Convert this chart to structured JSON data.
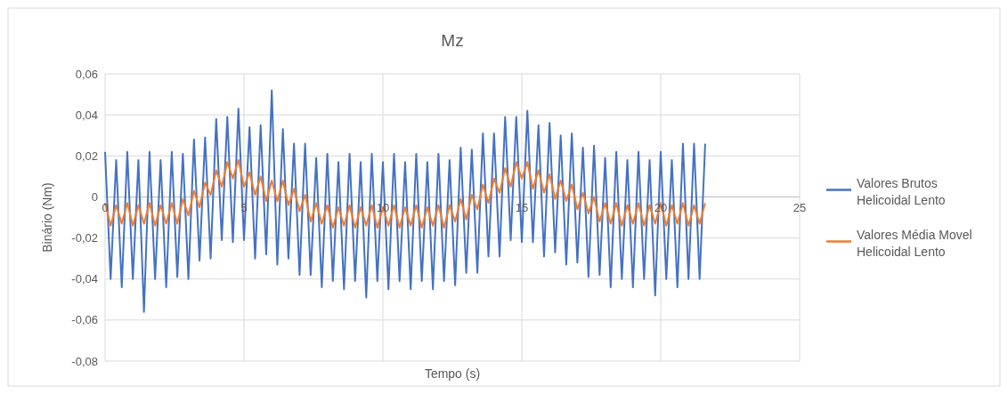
{
  "chart_data": {
    "type": "line",
    "title": "Mz",
    "xlabel": "Tempo (s)",
    "ylabel": "Binário (Nm)",
    "x": [
      0,
      0.2,
      0.4,
      0.6,
      0.8,
      1,
      1.2,
      1.4,
      1.6,
      1.8,
      2,
      2.2,
      2.4,
      2.6,
      2.8,
      3,
      3.2,
      3.4,
      3.6,
      3.8,
      4,
      4.2,
      4.4,
      4.6,
      4.8,
      5,
      5.2,
      5.4,
      5.6,
      5.8,
      6,
      6.2,
      6.4,
      6.6,
      6.8,
      7,
      7.2,
      7.4,
      7.6,
      7.8,
      8,
      8.2,
      8.4,
      8.6,
      8.8,
      9,
      9.2,
      9.4,
      9.6,
      9.8,
      10,
      10.2,
      10.4,
      10.6,
      10.8,
      11,
      11.2,
      11.4,
      11.6,
      11.8,
      12,
      12.2,
      12.4,
      12.6,
      12.8,
      13,
      13.2,
      13.4,
      13.6,
      13.8,
      14,
      14.2,
      14.4,
      14.6,
      14.8,
      15,
      15.2,
      15.4,
      15.6,
      15.8,
      16,
      16.2,
      16.4,
      16.6,
      16.8,
      17,
      17.2,
      17.4,
      17.6,
      17.8,
      18,
      18.2,
      18.4,
      18.6,
      18.8,
      19,
      19.2,
      19.4,
      19.6,
      19.8,
      20,
      20.2,
      20.4,
      20.6,
      20.8,
      21,
      21.2,
      21.4,
      21.6
    ],
    "series": [
      {
        "name": "Valores Brutos Helicoidal Lento",
        "color": "#4472c4",
        "values": [
          0.022,
          -0.04,
          0.018,
          -0.044,
          0.022,
          -0.04,
          0.018,
          -0.056,
          0.022,
          -0.04,
          0.018,
          -0.044,
          0.022,
          -0.039,
          0.021,
          -0.04,
          0.028,
          -0.031,
          0.029,
          -0.03,
          0.038,
          -0.021,
          0.039,
          -0.022,
          0.043,
          -0.021,
          0.034,
          -0.03,
          0.035,
          -0.028,
          0.052,
          -0.033,
          0.033,
          -0.03,
          0.026,
          -0.038,
          0.026,
          -0.038,
          0.019,
          -0.044,
          0.021,
          -0.041,
          0.017,
          -0.045,
          0.021,
          -0.041,
          0.017,
          -0.049,
          0.021,
          -0.041,
          0.017,
          -0.045,
          0.021,
          -0.041,
          0.017,
          -0.045,
          0.021,
          -0.041,
          0.017,
          -0.045,
          0.021,
          -0.041,
          0.018,
          -0.043,
          0.024,
          -0.037,
          0.023,
          -0.037,
          0.031,
          -0.029,
          0.031,
          -0.029,
          0.039,
          -0.021,
          0.039,
          -0.022,
          0.042,
          -0.022,
          0.035,
          -0.029,
          0.036,
          -0.027,
          0.03,
          -0.033,
          0.031,
          -0.032,
          0.024,
          -0.039,
          0.025,
          -0.038,
          0.019,
          -0.044,
          0.022,
          -0.04,
          0.018,
          -0.044,
          0.022,
          -0.04,
          0.018,
          -0.048,
          0.022,
          -0.04,
          0.018,
          -0.044,
          0.026,
          -0.04,
          0.026,
          -0.04,
          0.026
        ]
      },
      {
        "name": "Valores Média Movel Helicoidal Lento",
        "color": "#ed7d31",
        "values": [
          -0.003,
          -0.014,
          -0.004,
          -0.013,
          -0.003,
          -0.014,
          -0.004,
          -0.013,
          -0.003,
          -0.014,
          -0.004,
          -0.013,
          -0.003,
          -0.013,
          -0.001,
          -0.009,
          0.003,
          -0.005,
          0.007,
          0.001,
          0.013,
          0.005,
          0.017,
          0.009,
          0.018,
          0.005,
          0.012,
          0.001,
          0.01,
          -0.002,
          0.008,
          -0.002,
          0.008,
          -0.004,
          0.004,
          -0.007,
          0.001,
          -0.012,
          -0.003,
          -0.013,
          -0.004,
          -0.015,
          -0.005,
          -0.014,
          -0.004,
          -0.015,
          -0.005,
          -0.014,
          -0.004,
          -0.015,
          -0.005,
          -0.014,
          -0.004,
          -0.015,
          -0.005,
          -0.014,
          -0.004,
          -0.015,
          -0.005,
          -0.014,
          -0.004,
          -0.015,
          -0.004,
          -0.012,
          -0.001,
          -0.011,
          0.001,
          -0.006,
          0.006,
          -0.003,
          0.009,
          0.002,
          0.014,
          0.005,
          0.017,
          0.009,
          0.017,
          0.004,
          0.013,
          0.002,
          0.011,
          -0.001,
          0.008,
          -0.002,
          0.006,
          -0.006,
          0.002,
          -0.008,
          0,
          -0.012,
          -0.003,
          -0.013,
          -0.003,
          -0.014,
          -0.004,
          -0.013,
          -0.003,
          -0.014,
          -0.004,
          -0.013,
          -0.003,
          -0.014,
          -0.004,
          -0.013,
          -0.003,
          -0.014,
          -0.004,
          -0.013,
          -0.003
        ]
      }
    ],
    "xlim": [
      0,
      25
    ],
    "xticks": [
      0,
      5,
      10,
      15,
      20,
      25
    ],
    "ylim": [
      -0.08,
      0.06
    ],
    "yticks": [
      {
        "value": -0.08,
        "label": "-0,08"
      },
      {
        "value": -0.06,
        "label": "-0,06"
      },
      {
        "value": -0.04,
        "label": "-0,04"
      },
      {
        "value": -0.02,
        "label": "-0,02"
      },
      0,
      {
        "value": 0.02,
        "label": "0,02"
      },
      {
        "value": 0.04,
        "label": "0,04"
      },
      {
        "value": 0.06,
        "label": "0,06"
      }
    ],
    "grid": true,
    "legend": "right",
    "marker": "none",
    "line_style": "solid"
  }
}
